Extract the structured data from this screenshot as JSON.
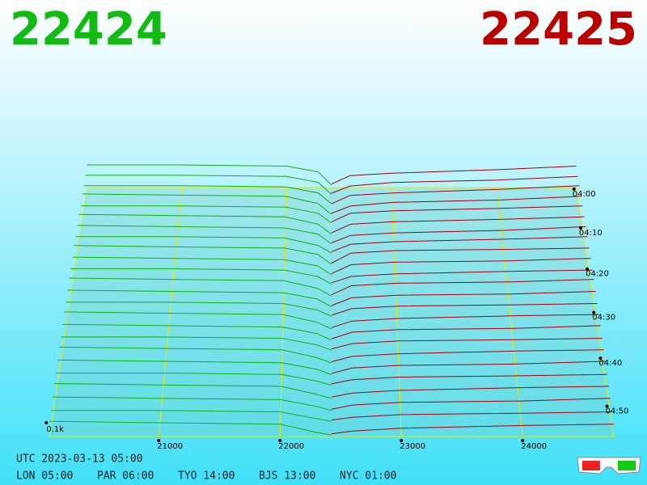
{
  "header": {
    "bid": 22424,
    "ask": 22425
  },
  "depth": {
    "price_ticks": [
      21000,
      22000,
      23000,
      24000
    ],
    "depth_ticks": [
      {
        "value": 0.1,
        "label": "0.1k"
      }
    ],
    "time_ticks": [
      "04:00",
      "04:10",
      "04:20",
      "04:30",
      "04:40",
      "04:50"
    ],
    "bid_prices": [
      20100,
      21000,
      22000,
      22300,
      22424
    ],
    "ask_prices": [
      22425,
      22600,
      23000,
      24000,
      24750
    ],
    "rows": [
      {
        "bid": [
          0.19,
          0.19,
          0.18,
          0.13,
          0.02
        ],
        "ask": [
          0.03,
          0.1,
          0.12,
          0.15,
          0.18
        ]
      },
      {
        "bid": [
          0.18,
          0.18,
          0.17,
          0.12,
          0.02
        ],
        "ask": [
          0.03,
          0.09,
          0.12,
          0.14,
          0.17
        ]
      },
      {
        "bid": [
          0.17,
          0.17,
          0.16,
          0.11,
          0.02
        ],
        "ask": [
          0.02,
          0.09,
          0.11,
          0.14,
          0.17
        ]
      },
      {
        "bid": [
          0.18,
          0.17,
          0.16,
          0.1,
          0.01
        ],
        "ask": [
          0.02,
          0.08,
          0.11,
          0.13,
          0.16
        ]
      },
      {
        "bid": [
          0.16,
          0.16,
          0.15,
          0.1,
          0.02
        ],
        "ask": [
          0.03,
          0.1,
          0.12,
          0.14,
          0.16
        ]
      },
      {
        "bid": [
          0.17,
          0.16,
          0.15,
          0.09,
          0.01
        ],
        "ask": [
          0.02,
          0.09,
          0.11,
          0.13,
          0.15
        ]
      },
      {
        "bid": [
          0.16,
          0.15,
          0.14,
          0.09,
          0.01
        ],
        "ask": [
          0.02,
          0.08,
          0.1,
          0.12,
          0.15
        ]
      },
      {
        "bid": [
          0.15,
          0.15,
          0.14,
          0.08,
          0.02
        ],
        "ask": [
          0.03,
          0.09,
          0.11,
          0.13,
          0.15
        ]
      },
      {
        "bid": [
          0.16,
          0.15,
          0.14,
          0.09,
          0.01
        ],
        "ask": [
          0.02,
          0.1,
          0.12,
          0.13,
          0.14
        ]
      },
      {
        "bid": [
          0.15,
          0.14,
          0.13,
          0.08,
          0.01
        ],
        "ask": [
          0.02,
          0.09,
          0.11,
          0.12,
          0.14
        ]
      },
      {
        "bid": [
          0.14,
          0.14,
          0.13,
          0.08,
          0.02
        ],
        "ask": [
          0.03,
          0.08,
          0.1,
          0.12,
          0.13
        ]
      },
      {
        "bid": [
          0.15,
          0.14,
          0.13,
          0.07,
          0.01
        ],
        "ask": [
          0.02,
          0.09,
          0.11,
          0.12,
          0.14
        ]
      },
      {
        "bid": [
          0.14,
          0.13,
          0.12,
          0.07,
          0.01
        ],
        "ask": [
          0.02,
          0.08,
          0.1,
          0.11,
          0.13
        ]
      },
      {
        "bid": [
          0.13,
          0.13,
          0.12,
          0.07,
          0.02
        ],
        "ask": [
          0.03,
          0.08,
          0.1,
          0.11,
          0.12
        ]
      },
      {
        "bid": [
          0.14,
          0.13,
          0.12,
          0.06,
          0.01
        ],
        "ask": [
          0.02,
          0.07,
          0.09,
          0.11,
          0.12
        ]
      },
      {
        "bid": [
          0.13,
          0.12,
          0.11,
          0.06,
          0.01
        ],
        "ask": [
          0.02,
          0.07,
          0.09,
          0.1,
          0.12
        ]
      },
      {
        "bid": [
          0.12,
          0.12,
          0.11,
          0.06,
          0.02
        ],
        "ask": [
          0.03,
          0.07,
          0.09,
          0.1,
          0.11
        ]
      },
      {
        "bid": [
          0.13,
          0.12,
          0.11,
          0.05,
          0.01
        ],
        "ask": [
          0.02,
          0.06,
          0.08,
          0.1,
          0.11
        ]
      },
      {
        "bid": [
          0.12,
          0.11,
          0.1,
          0.05,
          0.01
        ],
        "ask": [
          0.02,
          0.06,
          0.08,
          0.09,
          0.11
        ]
      },
      {
        "bid": [
          0.11,
          0.11,
          0.1,
          0.05,
          0.02
        ],
        "ask": [
          0.03,
          0.06,
          0.08,
          0.09,
          0.1
        ]
      },
      {
        "bid": [
          0.12,
          0.11,
          0.1,
          0.04,
          0.01
        ],
        "ask": [
          0.02,
          0.05,
          0.07,
          0.09,
          0.1
        ]
      },
      {
        "bid": [
          0.11,
          0.1,
          0.09,
          0.04,
          0.01
        ],
        "ask": [
          0.02,
          0.05,
          0.07,
          0.08,
          0.1
        ]
      },
      {
        "bid": [
          0.1,
          0.1,
          0.09,
          0.04,
          0.02
        ],
        "ask": [
          0.03,
          0.05,
          0.07,
          0.08,
          0.09
        ]
      },
      {
        "bid": [
          0.11,
          0.1,
          0.09,
          0.03,
          0.01
        ],
        "ask": [
          0.02,
          0.04,
          0.06,
          0.08,
          0.09
        ]
      }
    ]
  },
  "footer": {
    "utc": "UTC 2023-03-13 05:00",
    "clocks": [
      "LON 05:00",
      "PAR 06:00",
      "TYO 14:00",
      "BJS 13:00",
      "NYC 01:00"
    ]
  }
}
